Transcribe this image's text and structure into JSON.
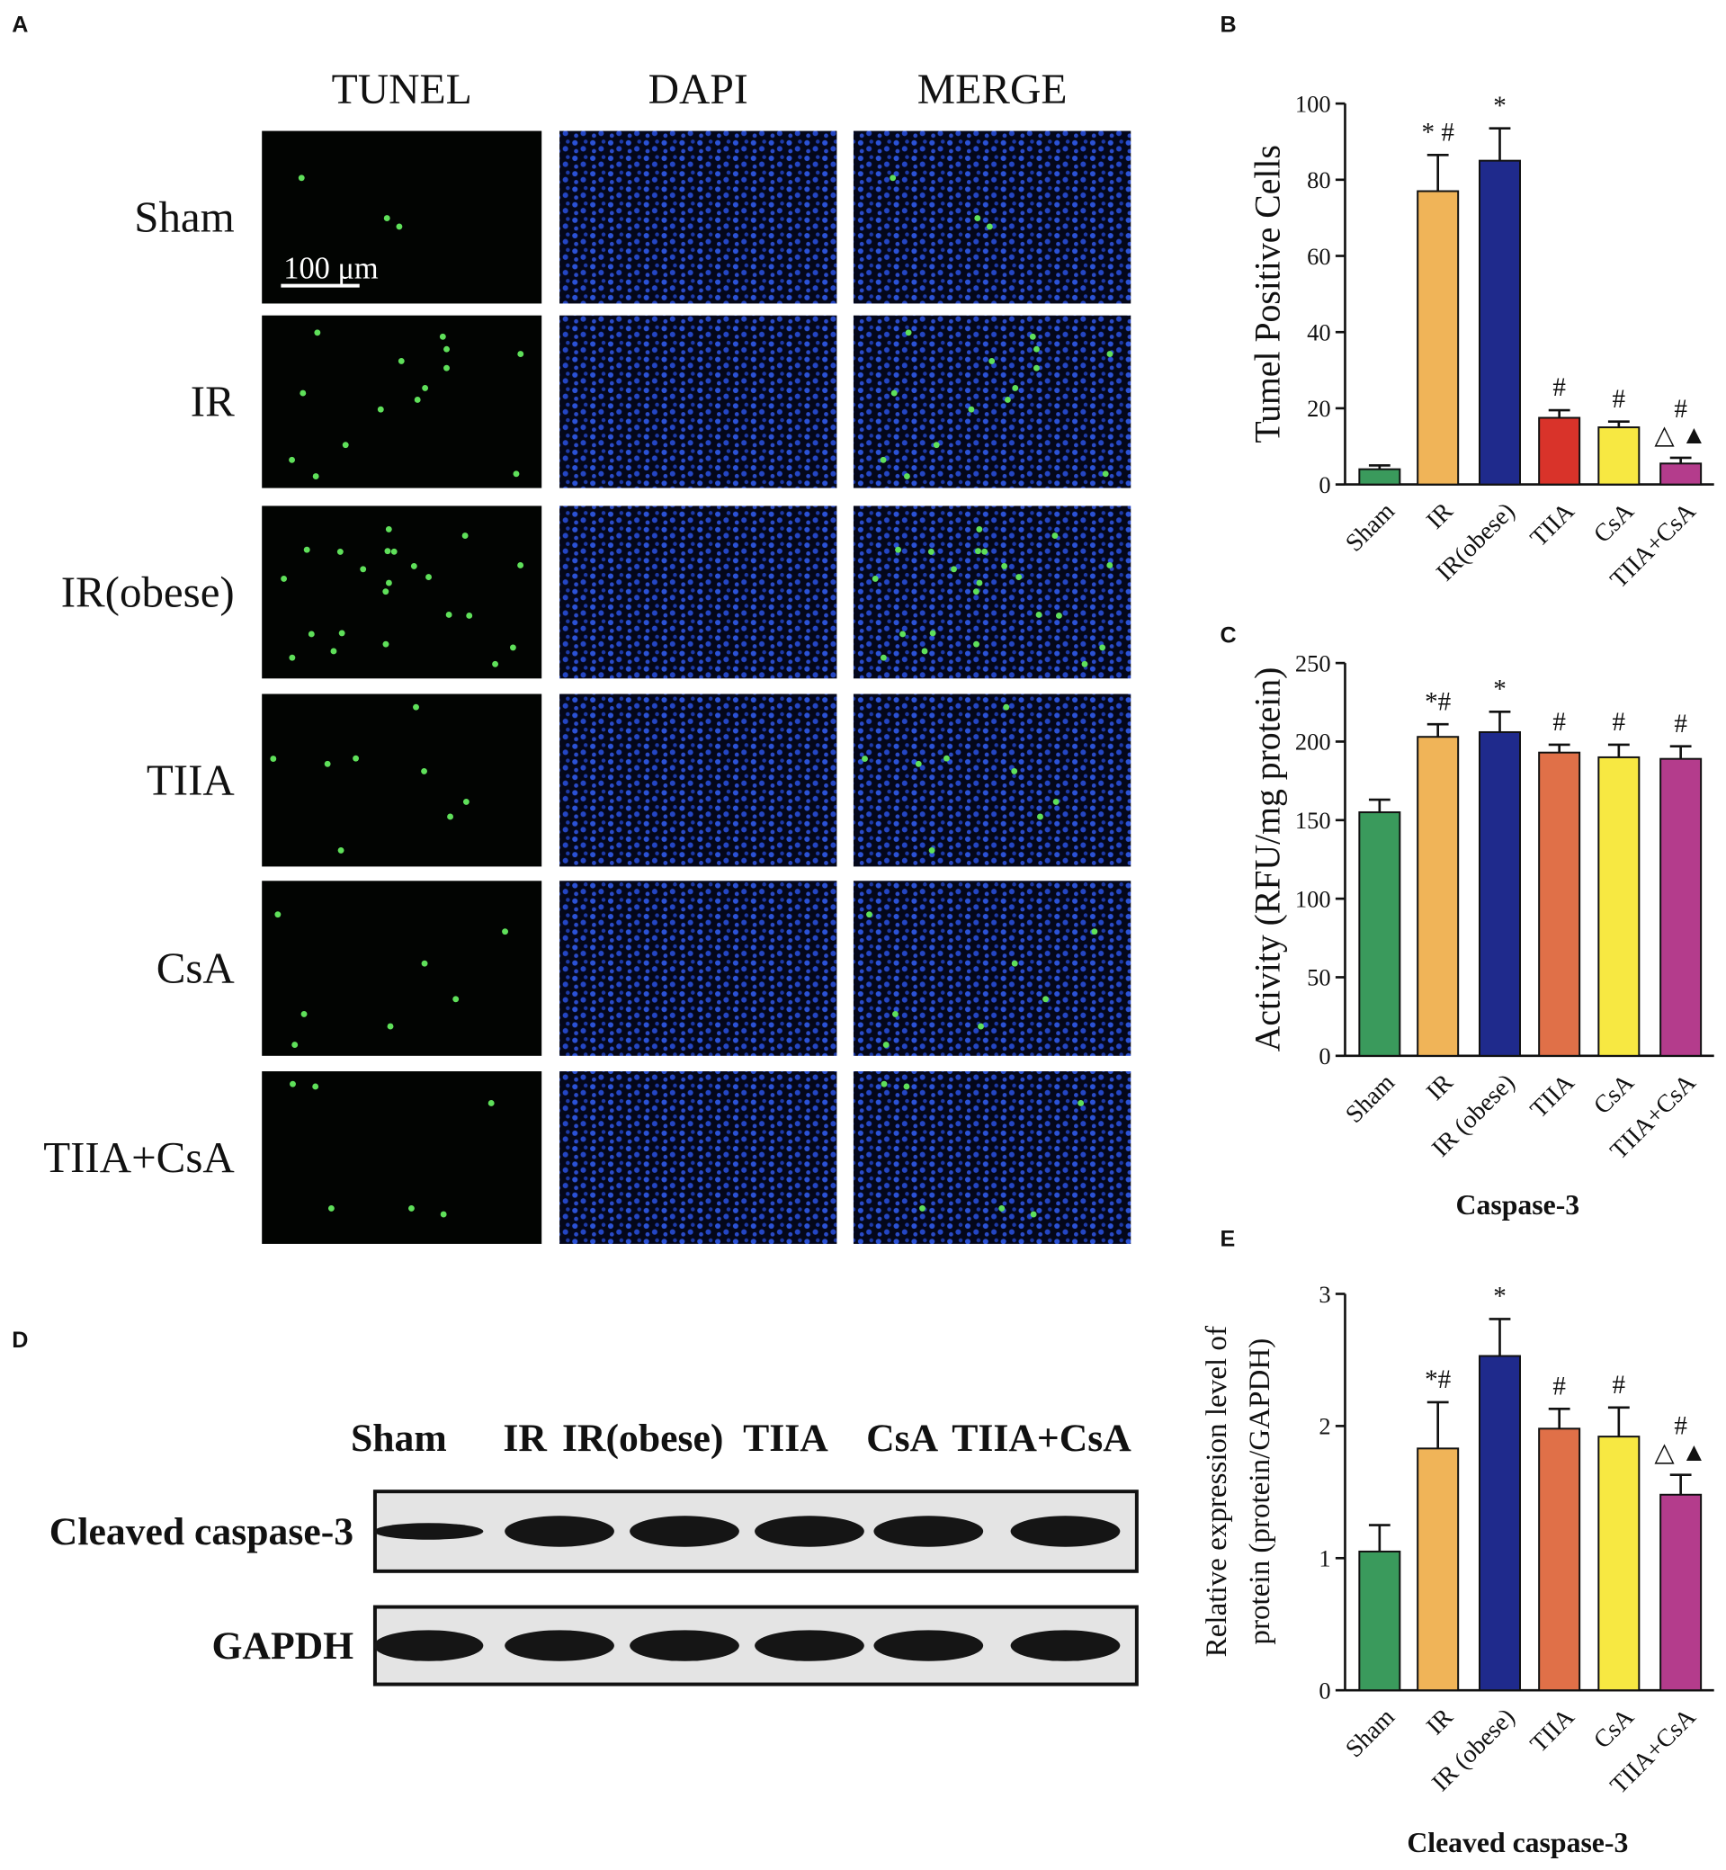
{
  "panel_labels": [
    "A",
    "B",
    "C",
    "D",
    "E"
  ],
  "microscopy": {
    "columns": [
      "TUNEL",
      "DAPI",
      "MERGE"
    ],
    "rows": [
      "Sham",
      "IR",
      "IR(obese)",
      "TIIA",
      "CsA",
      "TIIA+CsA"
    ],
    "scale_bar": "100 μm"
  },
  "western_blot": {
    "lanes": [
      "Sham",
      "IR",
      "IR(obese)",
      "TIIA",
      "CsA",
      "TIIA+CsA"
    ],
    "rows": [
      "Cleaved caspase-3",
      "GAPDH"
    ]
  },
  "chart_data": [
    {
      "type": "bar",
      "ylabel": "Tumel Positive Cells",
      "categories": [
        "Sham",
        "IR",
        "IR(obese)",
        "TIIA",
        "CsA",
        "TIIA+CsA"
      ],
      "values": [
        4,
        77,
        85,
        17.5,
        15,
        5.5
      ],
      "errors": [
        1,
        9.5,
        8.5,
        2,
        1.5,
        1.5
      ],
      "colors": [
        "#3a9a5c",
        "#f0b458",
        "#1f2a8c",
        "#d9332a",
        "#f7e842",
        "#b43c8c"
      ],
      "annotations": [
        [],
        [
          "* #"
        ],
        [
          "*"
        ],
        [
          "#"
        ],
        [
          "#"
        ],
        [
          "#",
          "△ ▲"
        ]
      ],
      "ylim": [
        0,
        100
      ],
      "yticks": [
        0,
        20,
        40,
        60,
        80,
        100
      ]
    },
    {
      "type": "bar",
      "ylabel": "Activity (RFU/mg protein)",
      "xlabel": "Caspase-3",
      "categories": [
        "Sham",
        "IR",
        "IR (obese)",
        "TIIA",
        "CsA",
        "TIIA+CsA"
      ],
      "values": [
        155,
        203,
        206,
        193,
        190,
        189
      ],
      "errors": [
        8,
        8,
        13,
        5,
        8,
        8
      ],
      "colors": [
        "#3a9a5c",
        "#f0b458",
        "#1f2a8c",
        "#e07048",
        "#f7e842",
        "#b43c8c"
      ],
      "annotations": [
        [],
        [
          "*#"
        ],
        [
          "*"
        ],
        [
          "#"
        ],
        [
          "#"
        ],
        [
          "#"
        ]
      ],
      "ylim": [
        0,
        250
      ],
      "yticks": [
        0,
        50,
        100,
        150,
        200,
        250
      ]
    },
    {
      "type": "bar",
      "ylabel": [
        "Relative expression level of",
        "protein (protein/GAPDH)"
      ],
      "xlabel": "Cleaved caspase-3",
      "categories": [
        "Sham",
        "IR",
        "IR (obese)",
        "TIIA",
        "CsA",
        "TIIA+CsA"
      ],
      "values": [
        1.05,
        1.83,
        2.53,
        1.98,
        1.92,
        1.48
      ],
      "errors": [
        0.2,
        0.35,
        0.28,
        0.15,
        0.22,
        0.15
      ],
      "colors": [
        "#3a9a5c",
        "#f0b458",
        "#1f2a8c",
        "#e07048",
        "#f7e842",
        "#b43c8c"
      ],
      "annotations": [
        [],
        [
          "*#"
        ],
        [
          "*"
        ],
        [
          "#"
        ],
        [
          "#"
        ],
        [
          "#",
          "△ ▲"
        ]
      ],
      "ylim": [
        0,
        3
      ],
      "yticks": [
        0,
        1,
        2,
        3
      ]
    }
  ]
}
